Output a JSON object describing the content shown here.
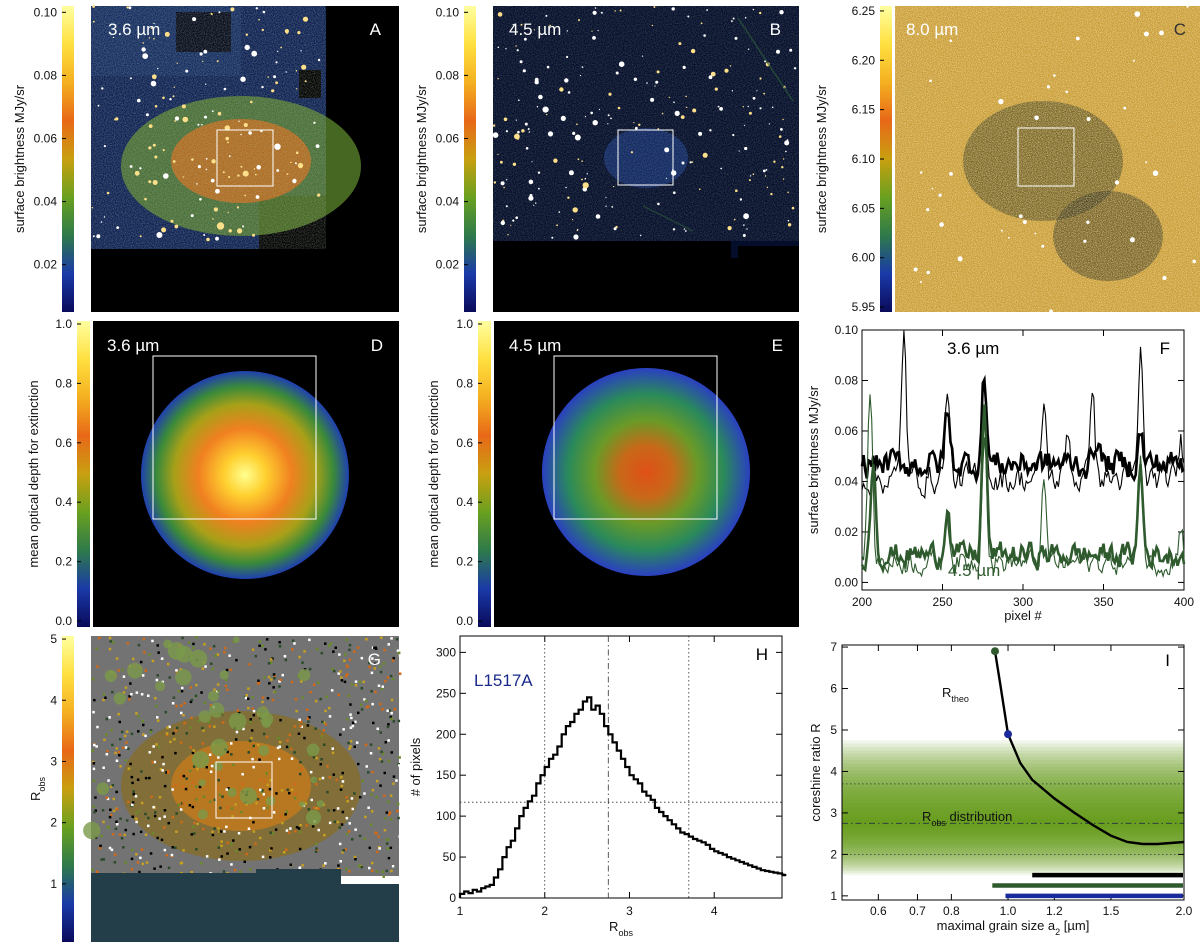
{
  "figure": {
    "object_name": "L1517A"
  },
  "colorbar_gradient": [
    "#0a0a5a",
    "#1a3aa8",
    "#2e7a4a",
    "#6aa020",
    "#c8a010",
    "#e86818",
    "#f4b020",
    "#ffe040",
    "#ffffa0"
  ],
  "chart_data": [
    {
      "id": "A",
      "type": "heatmap",
      "letter": "A",
      "label": "3.6 µm",
      "ylabel": "surface brightness MJy/sr",
      "cbar_range": [
        0.005,
        0.102
      ],
      "cbar_ticks": [
        "0.02",
        "0.04",
        "0.06",
        "0.08",
        "0.10"
      ],
      "cbar_tick_values": [
        0.02,
        0.04,
        0.06,
        0.08,
        0.1
      ]
    },
    {
      "id": "B",
      "type": "heatmap",
      "letter": "B",
      "label": "4.5 µm",
      "ylabel": "surface brightness MJy/sr",
      "cbar_range": [
        0.005,
        0.102
      ],
      "cbar_ticks": [
        "0.02",
        "0.04",
        "0.06",
        "0.08",
        "0.10"
      ],
      "cbar_tick_values": [
        0.02,
        0.04,
        0.06,
        0.08,
        0.1
      ]
    },
    {
      "id": "C",
      "type": "heatmap",
      "letter": "C",
      "label": "8.0 µm",
      "ylabel": "surface brightness MJy/sr",
      "cbar_range": [
        5.945,
        6.255
      ],
      "cbar_ticks": [
        "5.95",
        "6.00",
        "6.05",
        "6.10",
        "6.15",
        "6.20",
        "6.25"
      ],
      "cbar_tick_values": [
        5.95,
        6.0,
        6.05,
        6.1,
        6.15,
        6.2,
        6.25
      ]
    },
    {
      "id": "D",
      "type": "heatmap",
      "letter": "D",
      "label": "3.6 µm",
      "ylabel": "mean optical depth for extinction",
      "cbar_range": [
        -0.02,
        1.01
      ],
      "cbar_ticks": [
        "0.0",
        "0.2",
        "0.4",
        "0.6",
        "0.8",
        "1.0"
      ],
      "cbar_tick_values": [
        0.0,
        0.2,
        0.4,
        0.6,
        0.8,
        1.0
      ],
      "peak": 1.0
    },
    {
      "id": "E",
      "type": "heatmap",
      "letter": "E",
      "label": "4.5 µm",
      "ylabel": "mean optical depth for extinction",
      "cbar_range": [
        -0.02,
        1.01
      ],
      "cbar_ticks": [
        "0.0",
        "0.2",
        "0.4",
        "0.6",
        "0.8",
        "1.0"
      ],
      "cbar_tick_values": [
        0.0,
        0.2,
        0.4,
        0.6,
        0.8,
        1.0
      ],
      "peak": 0.65
    },
    {
      "id": "F",
      "type": "line",
      "letter": "F",
      "xlabel": "pixel #",
      "ylabel": "surface brightness MJy/sr",
      "xlim": [
        200,
        400
      ],
      "ylim": [
        -0.003,
        0.1
      ],
      "xticks": [
        "200",
        "250",
        "300",
        "350",
        "400"
      ],
      "xtick_values": [
        200,
        250,
        300,
        350,
        400
      ],
      "yticks": [
        "0.00",
        "0.02",
        "0.04",
        "0.06",
        "0.08",
        "0.10"
      ],
      "ytick_values": [
        0.0,
        0.02,
        0.04,
        0.06,
        0.08,
        0.1
      ],
      "annotations": [
        "3.6 µm",
        "4.5 µm"
      ],
      "series": [
        {
          "name": "3.6 µm thick",
          "color": "#000000",
          "base": 0.047,
          "noise": 0.006,
          "peaks": [
            [
              253,
              0.022
            ],
            [
              276,
              0.036
            ],
            [
              346,
              0.012
            ],
            [
              373,
              0.012
            ]
          ]
        },
        {
          "name": "3.6 µm thin",
          "color": "#000000",
          "base": 0.041,
          "noise": 0.006,
          "peaks": [
            [
              226,
              0.06
            ],
            [
              253,
              0.035
            ],
            [
              276,
              0.04
            ],
            [
              313,
              0.03
            ],
            [
              328,
              0.02
            ],
            [
              343,
              0.04
            ],
            [
              373,
              0.05
            ],
            [
              398,
              0.015
            ]
          ]
        },
        {
          "name": "4.5 µm thick",
          "color": "#2e5a2e",
          "base": 0.011,
          "noise": 0.005,
          "peaks": [
            [
              207,
              0.04
            ],
            [
              253,
              0.022
            ],
            [
              276,
              0.06
            ],
            [
              373,
              0.035
            ]
          ]
        },
        {
          "name": "4.5 µm thin",
          "color": "#2e5a2e",
          "base": 0.008,
          "noise": 0.005,
          "peaks": [
            [
              205,
              0.07
            ],
            [
              253,
              0.02
            ],
            [
              276,
              0.055
            ],
            [
              313,
              0.03
            ],
            [
              373,
              0.045
            ],
            [
              398,
              0.015
            ]
          ]
        }
      ]
    },
    {
      "id": "G",
      "type": "heatmap",
      "letter": "G",
      "ylabel": "R_obs",
      "ylabel_main": "R",
      "ylabel_sub": "obs",
      "cbar_range": [
        0.05,
        5.05
      ],
      "cbar_ticks": [
        "1",
        "2",
        "3",
        "4",
        "5"
      ],
      "cbar_tick_values": [
        1,
        2,
        3,
        4,
        5
      ]
    },
    {
      "id": "H",
      "type": "histogram",
      "letter": "H",
      "title": "L1517A",
      "xlabel": "R_obs",
      "xlabel_main": "R",
      "xlabel_sub": "obs",
      "ylabel": "# of pixels",
      "xlim": [
        1,
        4.8
      ],
      "ylim": [
        0,
        320
      ],
      "xticks": [
        "1",
        "2",
        "3",
        "4"
      ],
      "xtick_values": [
        1,
        2,
        3,
        4
      ],
      "yticks": [
        "0",
        "50",
        "100",
        "150",
        "200",
        "250",
        "300"
      ],
      "ytick_values": [
        0,
        50,
        100,
        150,
        200,
        250,
        300
      ],
      "bin_width": 0.05,
      "counts": [
        5,
        8,
        6,
        10,
        8,
        12,
        14,
        16,
        25,
        35,
        50,
        62,
        70,
        85,
        100,
        110,
        118,
        125,
        140,
        150,
        160,
        170,
        175,
        185,
        200,
        210,
        215,
        225,
        230,
        240,
        245,
        230,
        235,
        225,
        210,
        200,
        190,
        180,
        170,
        160,
        150,
        145,
        140,
        130,
        125,
        120,
        110,
        105,
        100,
        95,
        90,
        85,
        80,
        78,
        75,
        72,
        70,
        68,
        65,
        60,
        57,
        55,
        53,
        50,
        48,
        46,
        44,
        42,
        40,
        38,
        36,
        34,
        33,
        32,
        31,
        30,
        29,
        28
      ],
      "vlines": [
        {
          "x": 2.0,
          "style": "dotted"
        },
        {
          "x": 2.75,
          "style": "dashdot"
        },
        {
          "x": 3.7,
          "style": "dotted"
        }
      ],
      "hline": 117
    },
    {
      "id": "I",
      "type": "line",
      "letter": "I",
      "xlabel": "maximal grain size a_2 [µm]",
      "xlabel_main": "maximal grain size a",
      "xlabel_sub": "2",
      "xlabel_unit": " [µm]",
      "ylabel": "coreshine ratio R",
      "xscale": "log",
      "xlim": [
        0.52,
        2.0
      ],
      "ylim": [
        0.9,
        7.05
      ],
      "xticks": [
        "0.6",
        "0.7",
        "0.8",
        "1.0",
        "1.2",
        "1.5",
        "2.0"
      ],
      "xtick_values": [
        0.6,
        0.7,
        0.8,
        1.0,
        1.2,
        1.5,
        2.0
      ],
      "yticks": [
        "1",
        "2",
        "3",
        "4",
        "5",
        "6",
        "7"
      ],
      "ytick_values": [
        1,
        2,
        3,
        4,
        5,
        6,
        7
      ],
      "curve": {
        "name": "R_theo",
        "label_main": "R",
        "label_sub": "theo",
        "x": [
          0.95,
          0.97,
          1.0,
          1.05,
          1.1,
          1.2,
          1.3,
          1.4,
          1.5,
          1.6,
          1.7,
          1.8,
          2.0
        ],
        "y": [
          6.9,
          6.1,
          4.9,
          4.2,
          3.8,
          3.35,
          3.0,
          2.7,
          2.45,
          2.3,
          2.25,
          2.25,
          2.3
        ]
      },
      "markers": [
        {
          "x": 0.95,
          "y": 6.9,
          "color": "#2e5a2e"
        },
        {
          "x": 1.0,
          "y": 4.9,
          "color": "#1a2a9a"
        }
      ],
      "band": {
        "label_main": "R",
        "label_sub": "obs",
        "label_rest": " distribution",
        "ymin": 1.5,
        "ymax": 4.75,
        "mean": 2.75,
        "lower": 2.0,
        "upper": 3.7
      },
      "bars": [
        {
          "x0": 1.1,
          "x1": 2.0,
          "y": 1.5,
          "color": "#000000"
        },
        {
          "x0": 0.94,
          "x1": 2.0,
          "y": 1.25,
          "color": "#2e5a2e"
        },
        {
          "x0": 0.99,
          "x1": 2.0,
          "y": 1.0,
          "color": "#1a2a9a"
        }
      ]
    }
  ]
}
